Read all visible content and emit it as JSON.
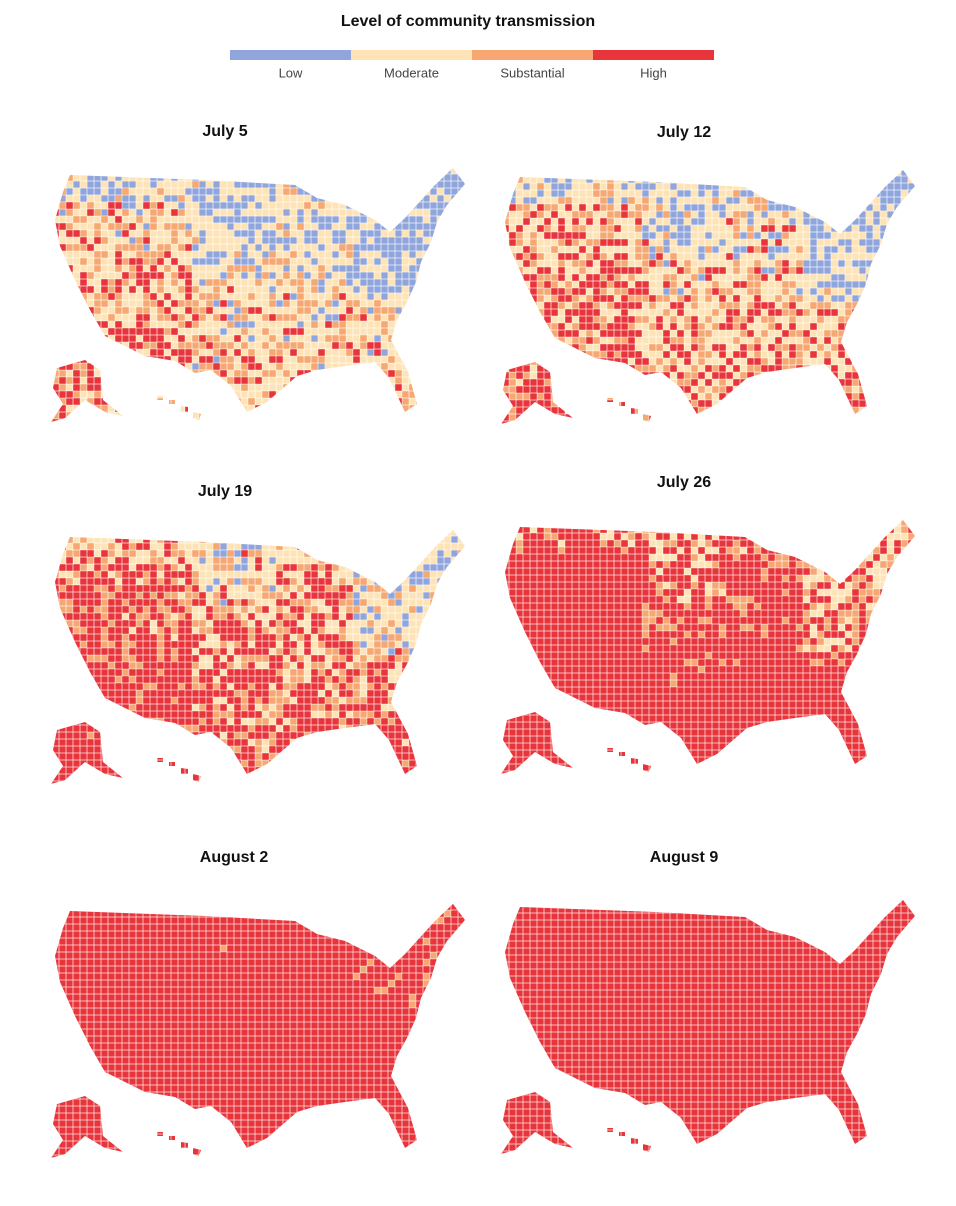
{
  "legend": {
    "title": "Level of community transmission",
    "items": [
      {
        "label": "Low",
        "color": "#8fa5db"
      },
      {
        "label": "Moderate",
        "color": "#fde3b6"
      },
      {
        "label": "Substantial",
        "color": "#f6a772"
      },
      {
        "label": "High",
        "color": "#e8353c"
      }
    ]
  },
  "maps": [
    {
      "title": "July 5"
    },
    {
      "title": "July 12"
    },
    {
      "title": "July 19"
    },
    {
      "title": "July 26"
    },
    {
      "title": "August 2"
    },
    {
      "title": "August 9"
    }
  ]
}
